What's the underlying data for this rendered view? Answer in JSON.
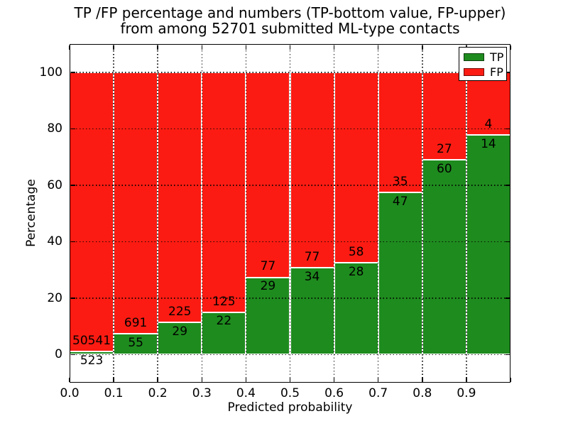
{
  "title": {
    "line1": "TP /FP percentage and numbers (TP-bottom value, FP-upper)",
    "line2": "from among 52701 submitted ML-type contacts"
  },
  "legend": {
    "items": [
      {
        "label": "TP",
        "color": "#1e8b1e"
      },
      {
        "label": "FP",
        "color": "#fb1b12"
      }
    ]
  },
  "chart_data": {
    "type": "bar",
    "stacked": true,
    "normalized": "each bar scaled to 100%; labels show raw counts (TP bottom, FP upper)",
    "title": "TP /FP percentage and numbers (TP-bottom value, FP-upper) from among 52701 submitted ML-type contacts",
    "total_submitted": 52701,
    "bins": [
      "0.0-0.1",
      "0.1-0.2",
      "0.2-0.3",
      "0.3-0.4",
      "0.4-0.5",
      "0.5-0.6",
      "0.6-0.7",
      "0.7-0.8",
      "0.8-0.9",
      "0.9-1.0"
    ],
    "x_bin_edges": [
      0.0,
      0.1,
      0.2,
      0.3,
      0.4,
      0.5,
      0.6,
      0.7,
      0.8,
      0.9,
      1.0
    ],
    "series": [
      {
        "name": "TP",
        "color": "#1e8b1e",
        "counts": [
          523,
          55,
          29,
          22,
          29,
          34,
          28,
          47,
          60,
          14
        ]
      },
      {
        "name": "FP",
        "color": "#fb1b12",
        "counts": [
          50541,
          691,
          225,
          125,
          77,
          77,
          58,
          35,
          27,
          4
        ]
      }
    ],
    "tp_percent": [
      1.02,
      7.37,
      11.42,
      14.97,
      27.36,
      30.63,
      32.56,
      57.32,
      68.97,
      77.78
    ],
    "xlabel": "Predicted probability",
    "ylabel": "Percentage",
    "xticks": [
      "0.0",
      "0.1",
      "0.2",
      "0.3",
      "0.4",
      "0.5",
      "0.6",
      "0.7",
      "0.8",
      "0.9"
    ],
    "yticks": [
      "0",
      "20",
      "40",
      "60",
      "80",
      "100"
    ],
    "xlim": [
      0.0,
      1.0
    ],
    "ylim": [
      -10,
      110
    ],
    "grid": true,
    "grid_style": "dotted",
    "legend_position": "upper right"
  }
}
